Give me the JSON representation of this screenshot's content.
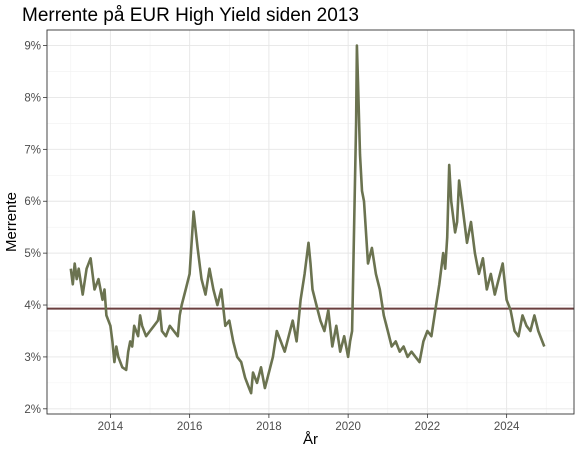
{
  "chart_data": {
    "type": "line",
    "title": "Merrente på EUR High Yield siden 2013",
    "xlabel": "År",
    "ylabel": "Merrente",
    "x_ticks": [
      2014,
      2016,
      2018,
      2020,
      2022,
      2024
    ],
    "x_tick_labels": [
      "2014",
      "2016",
      "2018",
      "2020",
      "2022",
      "2024"
    ],
    "y_ticks": [
      2,
      3,
      4,
      5,
      6,
      7,
      8,
      9
    ],
    "y_tick_labels": [
      "2%",
      "3%",
      "4%",
      "5%",
      "6%",
      "7%",
      "8%",
      "9%"
    ],
    "xlim": [
      2012.4,
      2025.7
    ],
    "ylim": [
      1.9,
      9.3
    ],
    "grid": true,
    "panel_border": true,
    "reference_line": {
      "y": 3.93,
      "color": "#6b3f3f"
    },
    "series": [
      {
        "color": "#6b7350",
        "x": [
          2013.0,
          2013.05,
          2013.1,
          2013.15,
          2013.2,
          2013.3,
          2013.4,
          2013.5,
          2013.6,
          2013.7,
          2013.8,
          2013.85,
          2013.9,
          2014.0,
          2014.05,
          2014.1,
          2014.15,
          2014.2,
          2014.3,
          2014.4,
          2014.45,
          2014.5,
          2014.55,
          2014.6,
          2014.7,
          2014.75,
          2014.8,
          2014.9,
          2015.0,
          2015.1,
          2015.2,
          2015.25,
          2015.3,
          2015.4,
          2015.5,
          2015.6,
          2015.7,
          2015.75,
          2015.8,
          2015.9,
          2016.0,
          2016.05,
          2016.1,
          2016.2,
          2016.3,
          2016.4,
          2016.5,
          2016.6,
          2016.7,
          2016.8,
          2016.9,
          2017.0,
          2017.1,
          2017.2,
          2017.3,
          2017.4,
          2017.5,
          2017.55,
          2017.6,
          2017.7,
          2017.8,
          2017.9,
          2018.0,
          2018.1,
          2018.2,
          2018.3,
          2018.4,
          2018.5,
          2018.6,
          2018.7,
          2018.8,
          2018.9,
          2019.0,
          2019.05,
          2019.1,
          2019.2,
          2019.3,
          2019.4,
          2019.5,
          2019.6,
          2019.7,
          2019.8,
          2019.9,
          2020.0,
          2020.05,
          2020.1,
          2020.15,
          2020.2,
          2020.22,
          2020.25,
          2020.3,
          2020.35,
          2020.4,
          2020.45,
          2020.5,
          2020.6,
          2020.7,
          2020.8,
          2020.9,
          2021.0,
          2021.1,
          2021.2,
          2021.3,
          2021.4,
          2021.5,
          2021.6,
          2021.7,
          2021.8,
          2021.9,
          2022.0,
          2022.1,
          2022.2,
          2022.3,
          2022.4,
          2022.45,
          2022.5,
          2022.55,
          2022.6,
          2022.7,
          2022.75,
          2022.8,
          2022.9,
          2023.0,
          2023.1,
          2023.2,
          2023.3,
          2023.4,
          2023.5,
          2023.6,
          2023.7,
          2023.8,
          2023.9,
          2024.0,
          2024.1,
          2024.2,
          2024.3,
          2024.4,
          2024.5,
          2024.6,
          2024.7,
          2024.8,
          2024.9,
          2024.95
        ],
        "values": [
          4.7,
          4.4,
          4.8,
          4.5,
          4.7,
          4.2,
          4.7,
          4.9,
          4.3,
          4.5,
          4.1,
          4.3,
          3.8,
          3.6,
          3.3,
          2.9,
          3.2,
          3.0,
          2.8,
          2.75,
          3.1,
          3.3,
          3.2,
          3.6,
          3.4,
          3.8,
          3.6,
          3.4,
          3.5,
          3.6,
          3.7,
          3.9,
          3.5,
          3.4,
          3.6,
          3.5,
          3.4,
          3.8,
          4.0,
          4.3,
          4.6,
          5.2,
          5.8,
          5.1,
          4.5,
          4.2,
          4.7,
          4.3,
          4.0,
          4.3,
          3.6,
          3.7,
          3.3,
          3.0,
          2.9,
          2.6,
          2.4,
          2.3,
          2.7,
          2.5,
          2.8,
          2.4,
          2.7,
          3.0,
          3.5,
          3.3,
          3.1,
          3.4,
          3.7,
          3.3,
          4.1,
          4.6,
          5.2,
          4.8,
          4.3,
          4.0,
          3.7,
          3.5,
          3.9,
          3.2,
          3.6,
          3.1,
          3.4,
          3.0,
          3.3,
          3.5,
          5.5,
          7.5,
          9.0,
          8.3,
          6.9,
          6.2,
          6.0,
          5.4,
          4.8,
          5.1,
          4.6,
          4.3,
          3.8,
          3.5,
          3.2,
          3.3,
          3.1,
          3.2,
          3.0,
          3.1,
          3.0,
          2.9,
          3.3,
          3.5,
          3.4,
          3.9,
          4.4,
          5.0,
          4.7,
          5.3,
          6.7,
          6.0,
          5.4,
          5.6,
          6.4,
          5.8,
          5.2,
          5.6,
          5.0,
          4.6,
          4.9,
          4.3,
          4.6,
          4.2,
          4.5,
          4.8,
          4.1,
          3.9,
          3.5,
          3.4,
          3.8,
          3.6,
          3.5,
          3.8,
          3.5,
          3.3,
          3.2
        ]
      }
    ]
  }
}
